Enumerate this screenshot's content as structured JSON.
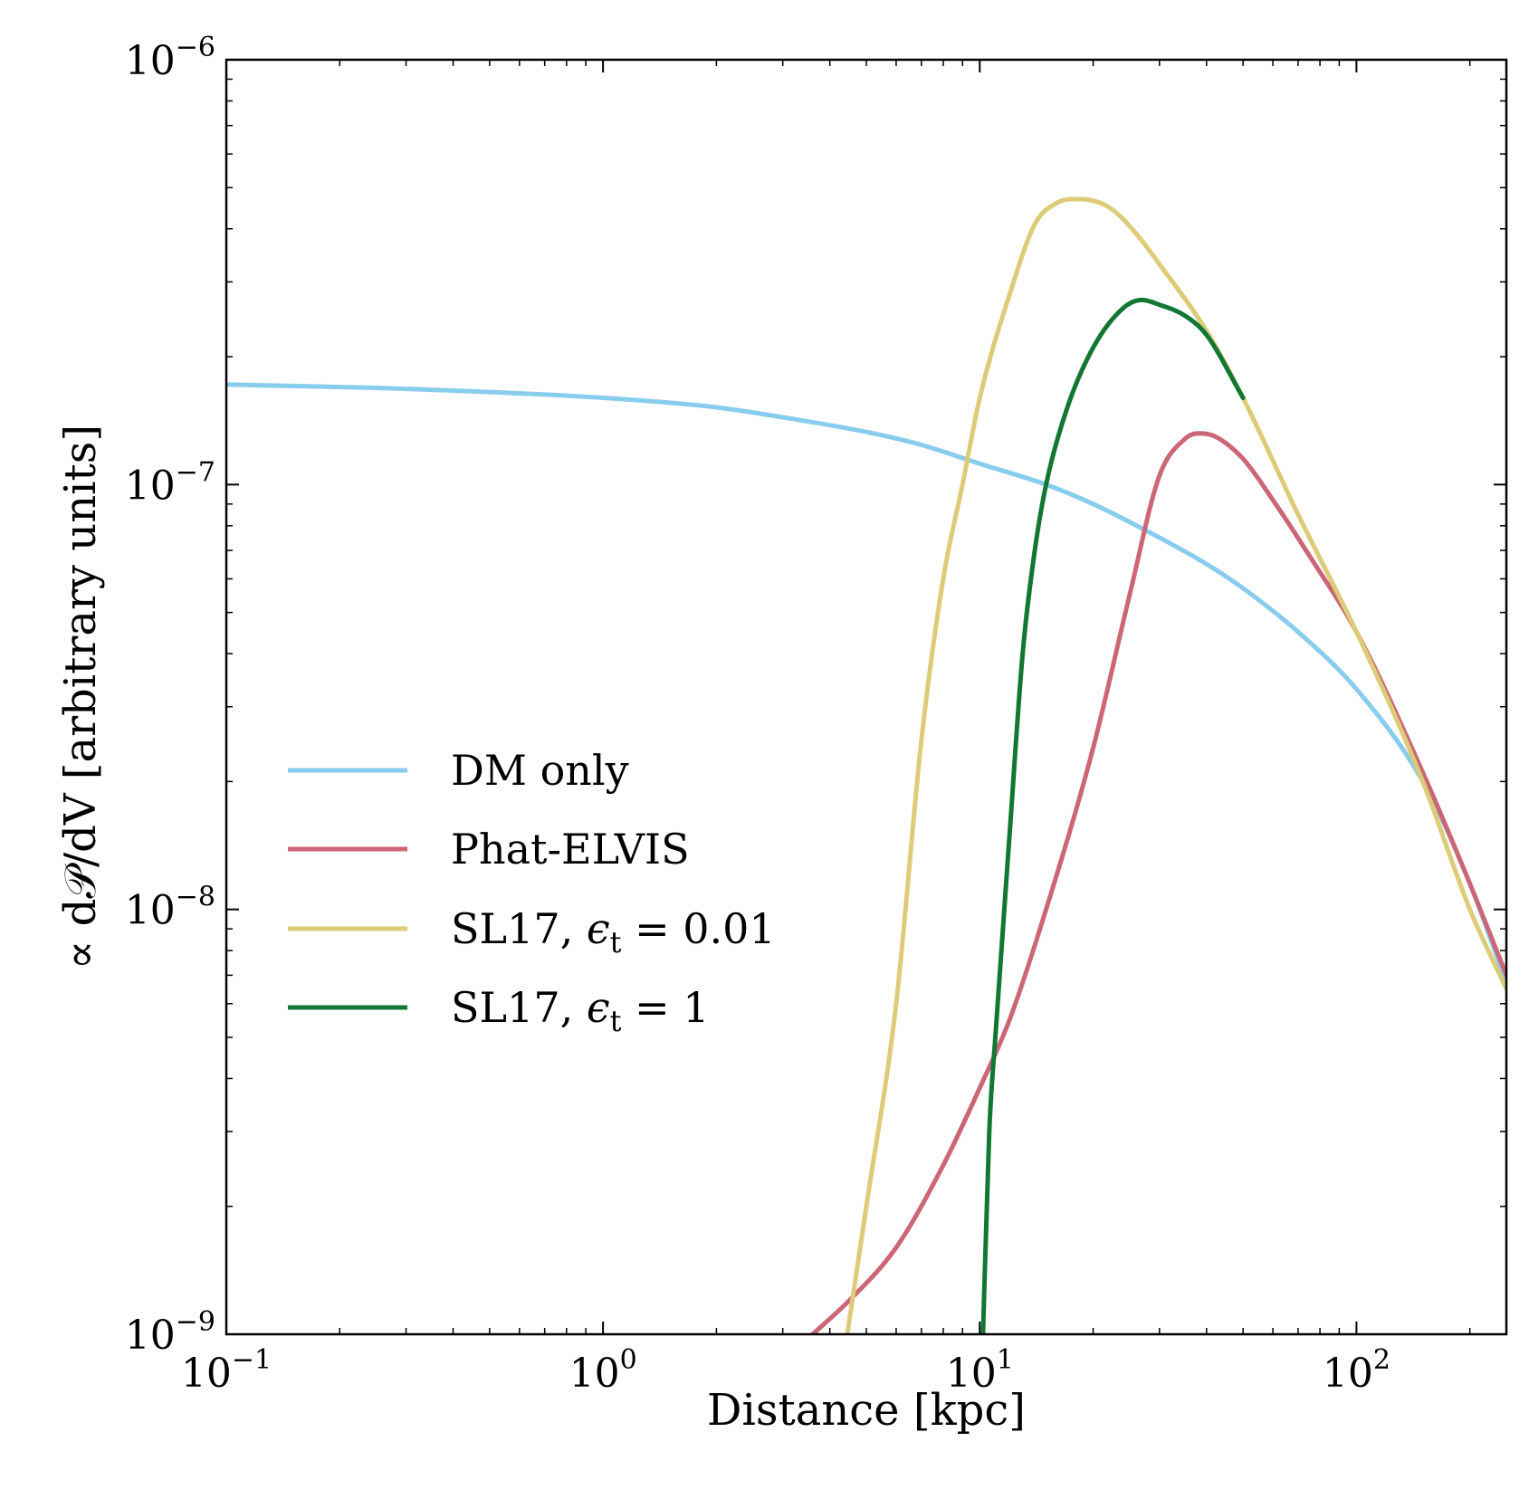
{
  "chart_data": {
    "type": "line",
    "title": "",
    "xlabel": "Distance [kpc]",
    "ylabel": "∝ d𝒫/dV [arbitrary units]",
    "xscale": "log",
    "yscale": "log",
    "xlim": [
      0.1,
      250
    ],
    "ylim": [
      1e-09,
      1e-06
    ],
    "x_ticks": [
      {
        "value": 0.1,
        "base": "10",
        "exp": "−1"
      },
      {
        "value": 1,
        "base": "10",
        "exp": "0"
      },
      {
        "value": 10,
        "base": "10",
        "exp": "1"
      },
      {
        "value": 100,
        "base": "10",
        "exp": "2"
      }
    ],
    "y_ticks": [
      {
        "value": 1e-09,
        "base": "10",
        "exp": "−9"
      },
      {
        "value": 1e-08,
        "base": "10",
        "exp": "−8"
      },
      {
        "value": 1e-07,
        "base": "10",
        "exp": "−7"
      },
      {
        "value": 1e-06,
        "base": "10",
        "exp": "−6"
      }
    ],
    "legend_position": "center-left",
    "series": [
      {
        "name": "DM only",
        "label_text": "DM only",
        "color": "#88CCEE",
        "points": [
          [
            0.1,
            1.72e-07
          ],
          [
            0.3,
            1.68e-07
          ],
          [
            1,
            1.6e-07
          ],
          [
            2,
            1.52e-07
          ],
          [
            3,
            1.44e-07
          ],
          [
            5,
            1.33e-07
          ],
          [
            7,
            1.24e-07
          ],
          [
            10,
            1.12e-07
          ],
          [
            15,
            1e-07
          ],
          [
            20,
            9e-08
          ],
          [
            30,
            7.5e-08
          ],
          [
            40,
            6.5e-08
          ],
          [
            50,
            5.7e-08
          ],
          [
            70,
            4.5e-08
          ],
          [
            100,
            3.3e-08
          ],
          [
            150,
            2e-08
          ],
          [
            200,
            1.15e-08
          ],
          [
            250,
            6.7e-09
          ]
        ]
      },
      {
        "name": "Phat-ELVIS",
        "label_text": "Phat-ELVIS",
        "color": "#CC6677",
        "points": [
          [
            3.6,
            1e-09
          ],
          [
            4.5,
            1.2e-09
          ],
          [
            6,
            1.6e-09
          ],
          [
            8,
            2.5e-09
          ],
          [
            10,
            3.8e-09
          ],
          [
            12,
            5.5e-09
          ],
          [
            15,
            1e-08
          ],
          [
            20,
            2.4e-08
          ],
          [
            25,
            5.5e-08
          ],
          [
            30,
            1.05e-07
          ],
          [
            35,
            1.28e-07
          ],
          [
            38,
            1.32e-07
          ],
          [
            42,
            1.3e-07
          ],
          [
            50,
            1.15e-07
          ],
          [
            60,
            9.2e-08
          ],
          [
            75,
            6.8e-08
          ],
          [
            100,
            4.5e-08
          ],
          [
            150,
            2.1e-08
          ],
          [
            200,
            1.15e-08
          ],
          [
            250,
            7e-09
          ]
        ]
      },
      {
        "name": "SL17, ε_t = 0.01",
        "label_base": "SL17,  ",
        "label_eps": "ϵ",
        "label_sub": "t",
        "label_eq": " = 0.01",
        "color": "#DDCC77",
        "points": [
          [
            4.45,
            1e-09
          ],
          [
            5,
            2e-09
          ],
          [
            6,
            6e-09
          ],
          [
            7,
            2.5e-08
          ],
          [
            8,
            6e-08
          ],
          [
            9,
            1e-07
          ],
          [
            10,
            1.6e-07
          ],
          [
            12,
            2.8e-07
          ],
          [
            14,
            4.1e-07
          ],
          [
            16,
            4.6e-07
          ],
          [
            18,
            4.7e-07
          ],
          [
            22,
            4.5e-07
          ],
          [
            26,
            3.9e-07
          ],
          [
            30,
            3.3e-07
          ],
          [
            40,
            2.3e-07
          ],
          [
            50,
            1.6e-07
          ],
          [
            70,
            8.5e-08
          ],
          [
            100,
            4.5e-08
          ],
          [
            150,
            2e-08
          ],
          [
            200,
            1e-08
          ],
          [
            250,
            6.5e-09
          ]
        ]
      },
      {
        "name": "SL17, ε_t = 1",
        "label_base": "SL17,  ",
        "label_eps": "ϵ",
        "label_sub": "t",
        "label_eq": " = 1",
        "color": "#117733",
        "points": [
          [
            10.2,
            1e-09
          ],
          [
            10.6,
            3e-09
          ],
          [
            11,
            5e-09
          ],
          [
            12,
            1.5e-08
          ],
          [
            13,
            4e-08
          ],
          [
            14,
            7e-08
          ],
          [
            15,
            1e-07
          ],
          [
            17,
            1.5e-07
          ],
          [
            20,
            2.1e-07
          ],
          [
            24,
            2.6e-07
          ],
          [
            27,
            2.72e-07
          ],
          [
            30,
            2.65e-07
          ],
          [
            35,
            2.5e-07
          ],
          [
            40,
            2.25e-07
          ],
          [
            50,
            1.6e-07
          ]
        ]
      }
    ]
  }
}
